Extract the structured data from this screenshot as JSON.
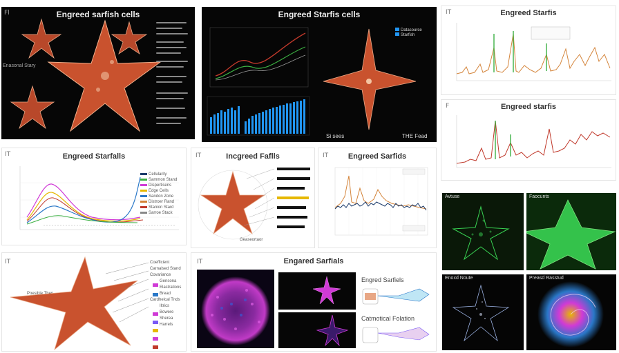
{
  "panels": {
    "p1": {
      "title": "Engreed sarfish cells",
      "side_label": "Enasonal Stary",
      "corner": "Fl"
    },
    "p2": {
      "title": "Engreed Starfis cells",
      "legend": [
        "Datasource",
        "Starfish"
      ],
      "footer_left": "Si sees",
      "footer_right": "THE Fead"
    },
    "p3": {
      "title": "Engreed Starfis",
      "corner": "IT"
    },
    "p4": {
      "title": "Engreed starfis",
      "corner": "F"
    },
    "p5": {
      "title": "Engreed Starfalls",
      "corner": "IT",
      "legend": [
        "Cellularity",
        "Sammon Stand",
        "Dispertisens",
        "Edge Cells",
        "Sandon Zone",
        "Distroer Rand",
        "Stanion Stard",
        "Sarroe Stack"
      ]
    },
    "p6": {
      "title": "Incgreed Faflls",
      "corner": "IT",
      "footer": "Geaseortaor"
    },
    "p7": {
      "title": "Engreed Sarfids",
      "corner": "IT"
    },
    "p8": {
      "label_left": "Poesible Then",
      "corner": "IT",
      "labels": [
        "Coefficient",
        "Carnalsed Stand",
        "Covariance",
        "Gensona",
        "Elastrations",
        "Bread",
        "Cardhelcal Tnds",
        "Iltrics",
        "Bowere",
        "Sherea",
        "Harrels"
      ]
    },
    "p9": {
      "title": "Engared Sarfials",
      "corner": "IT",
      "side_title_1": "Engred Sarfiels",
      "side_title_2": "Catmotical Folation"
    },
    "p10": {
      "label_a": "Avtuse",
      "label_b": "Faocunts",
      "label_c": "Enoxd Noute",
      "label_d": "Preasd Rasstud"
    }
  },
  "colors": {
    "starfish": "#c9522e",
    "starfish_light": "#e8a785",
    "line_red": "#c0392b",
    "line_green": "#3cb043",
    "line_orange": "#d4843a",
    "line_blue": "#2a78c8",
    "bar_blue": "#2196f3",
    "neon_green": "#39d353",
    "magenta": "#d03ad6"
  }
}
